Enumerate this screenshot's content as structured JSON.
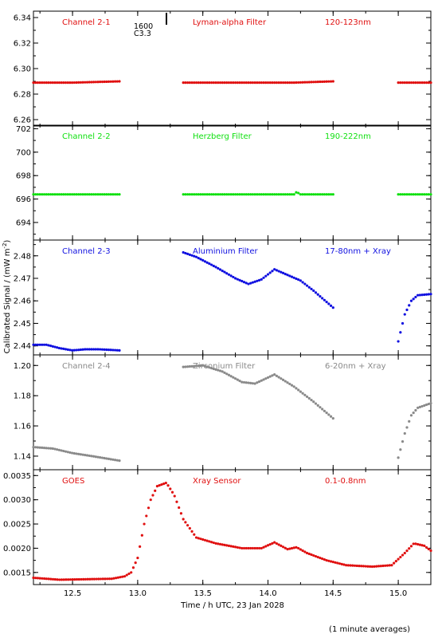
{
  "figure": {
    "ylabel": "Calibrated Signal / (mW m",
    "ylabel_sup": "-2",
    "ylabel_close": ")",
    "xlabel": "Time / h UTC, 23 Jan 2028",
    "footnote": "(1 minute averages)",
    "marker_label_top": "1600",
    "marker_label_bottom": "C3.3"
  },
  "chart_data": [
    {
      "type": "scatter",
      "channel": "Channel 2-1",
      "filter": "Lyman-alpha Filter",
      "band": "120-123nm",
      "color": "#e01010",
      "ylim": [
        6.255,
        6.345
      ],
      "yticks": [
        "6.26",
        "6.28",
        "6.30",
        "6.32",
        "6.34"
      ],
      "yticks_v": [
        6.26,
        6.28,
        6.3,
        6.32,
        6.34
      ],
      "segments": [
        {
          "x": [
            12.2,
            12.5,
            12.86
          ],
          "y": [
            6.289,
            6.289,
            6.29
          ]
        },
        {
          "x": [
            13.35,
            13.8,
            14.2,
            14.5
          ],
          "y": [
            6.289,
            6.289,
            6.289,
            6.29
          ]
        },
        {
          "x": [
            15.0,
            15.25
          ],
          "y": [
            6.289,
            6.289
          ]
        }
      ]
    },
    {
      "type": "scatter",
      "channel": "Channel 2-2",
      "filter": "Herzberg Filter",
      "band": "190-222nm",
      "color": "#10e010",
      "ylim": [
        692.5,
        702.3
      ],
      "yticks": [
        "694",
        "696",
        "698",
        "700",
        "702"
      ],
      "yticks_v": [
        694,
        696,
        698,
        700,
        702
      ],
      "segments": [
        {
          "x": [
            12.2,
            12.86
          ],
          "y": [
            696.4,
            696.4
          ]
        },
        {
          "x": [
            13.35,
            14.2,
            14.22,
            14.25,
            14.5
          ],
          "y": [
            696.4,
            696.4,
            696.6,
            696.4,
            696.4
          ]
        },
        {
          "x": [
            15.0,
            15.25
          ],
          "y": [
            696.4,
            696.4
          ]
        }
      ]
    },
    {
      "type": "scatter",
      "channel": "Channel 2-3",
      "filter": "Aluminium Filter",
      "band": "17-80nm + Xray",
      "color": "#1010e0",
      "ylim": [
        2.436,
        2.487
      ],
      "yticks": [
        "2.44",
        "2.45",
        "2.46",
        "2.47",
        "2.48"
      ],
      "yticks_v": [
        2.44,
        2.45,
        2.46,
        2.47,
        2.48
      ],
      "segments": [
        {
          "x": [
            12.2,
            12.3,
            12.4,
            12.5,
            12.6,
            12.7,
            12.86
          ],
          "y": [
            2.4405,
            2.4405,
            2.439,
            2.438,
            2.4385,
            2.4385,
            2.438
          ]
        },
        {
          "x": [
            13.35,
            13.45,
            13.6,
            13.75,
            13.85,
            13.95,
            14.05,
            14.15,
            14.25,
            14.35,
            14.5
          ],
          "y": [
            2.4815,
            2.4795,
            2.475,
            2.47,
            2.4675,
            2.4695,
            2.474,
            2.4715,
            2.469,
            2.4645,
            2.457
          ]
        },
        {
          "x": [
            15.0,
            15.05,
            15.1,
            15.15,
            15.25
          ],
          "y": [
            2.442,
            2.454,
            2.46,
            2.4625,
            2.463
          ]
        }
      ]
    },
    {
      "type": "scatter",
      "channel": "Channel 2-4",
      "filter": "Zirconium Filter",
      "band": "6-20nm + Xray",
      "color": "#8a8a8a",
      "ylim": [
        1.131,
        1.207
      ],
      "yticks": [
        "1.14",
        "1.16",
        "1.18",
        "1.20"
      ],
      "yticks_v": [
        1.14,
        1.16,
        1.18,
        1.2
      ],
      "segments": [
        {
          "x": [
            12.2,
            12.35,
            12.5,
            12.65,
            12.86
          ],
          "y": [
            1.146,
            1.145,
            1.142,
            1.14,
            1.137
          ]
        },
        {
          "x": [
            13.35,
            13.5,
            13.65,
            13.8,
            13.9,
            14.05,
            14.2,
            14.35,
            14.5
          ],
          "y": [
            1.199,
            1.2,
            1.196,
            1.189,
            1.188,
            1.194,
            1.186,
            1.176,
            1.165
          ]
        },
        {
          "x": [
            15.0,
            15.05,
            15.1,
            15.15,
            15.25
          ],
          "y": [
            1.139,
            1.155,
            1.167,
            1.172,
            1.175
          ]
        }
      ]
    },
    {
      "type": "scatter",
      "channel": "GOES",
      "filter": "Xray Sensor",
      "band": "0.1-0.8nm",
      "color": "#e01010",
      "ylim": [
        0.00125,
        0.00362
      ],
      "yticks": [
        "0.0015",
        "0.0020",
        "0.0025",
        "0.0030",
        "0.0035"
      ],
      "yticks_v": [
        0.0015,
        0.002,
        0.0025,
        0.003,
        0.0035
      ],
      "segments": [
        {
          "x": [
            12.2,
            12.4,
            12.6,
            12.8,
            12.9,
            12.95,
            13.0,
            13.05,
            13.1,
            13.15,
            13.22,
            13.28,
            13.35,
            13.45,
            13.6,
            13.8,
            13.95,
            14.05,
            14.15,
            14.22,
            14.3,
            14.45,
            14.6,
            14.8,
            14.95,
            15.05,
            15.12,
            15.2,
            15.25
          ],
          "y": [
            0.00139,
            0.00135,
            0.00136,
            0.00137,
            0.00142,
            0.0015,
            0.0018,
            0.0025,
            0.003,
            0.00328,
            0.00335,
            0.0031,
            0.0026,
            0.00222,
            0.0021,
            0.002,
            0.002,
            0.00212,
            0.00198,
            0.00202,
            0.0019,
            0.00175,
            0.00165,
            0.00162,
            0.00165,
            0.0019,
            0.0021,
            0.00205,
            0.00195
          ]
        }
      ]
    }
  ],
  "xaxis": {
    "xlim": [
      12.2,
      15.25
    ],
    "ticks": [
      "12.5",
      "13.0",
      "13.5",
      "14.0",
      "14.5",
      "15.0"
    ],
    "ticks_v": [
      12.5,
      13.0,
      13.5,
      14.0,
      14.5,
      15.0
    ],
    "marker_x": 13.22
  }
}
